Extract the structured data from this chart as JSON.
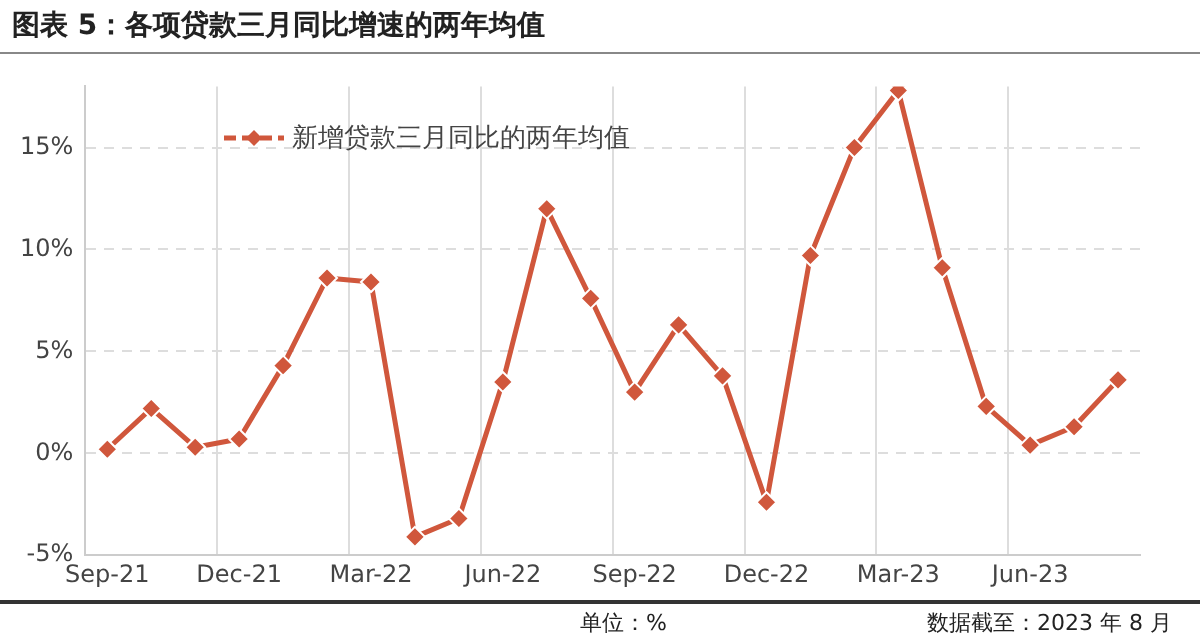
{
  "chart_data": {
    "type": "line",
    "title": "图表 5：各项贷款三月同比增速的两年均值",
    "categories": [
      "Sep-21",
      null,
      null,
      "Dec-21",
      null,
      null,
      "Mar-22",
      null,
      null,
      "Jun-22",
      null,
      null,
      "Sep-22",
      null,
      null,
      "Dec-22",
      null,
      null,
      "Mar-23",
      null,
      null,
      "Jun-23",
      null,
      null
    ],
    "series": [
      {
        "name": "新增贷款三月同比的两年均值",
        "color": "#d0573c",
        "values": [
          0.2,
          2.2,
          0.3,
          0.7,
          4.3,
          8.6,
          8.4,
          -4.1,
          -3.2,
          3.5,
          12.0,
          7.6,
          3.0,
          6.3,
          3.8,
          -2.4,
          9.7,
          15.0,
          17.8,
          9.1,
          2.3,
          0.4,
          1.3,
          3.6
        ]
      }
    ],
    "ylim": [
      -5,
      18
    ],
    "yticks": [
      {
        "value": -5,
        "label": "-5%"
      },
      {
        "value": 0,
        "label": "0%"
      },
      {
        "value": 5,
        "label": "5%"
      },
      {
        "value": 10,
        "label": "10%"
      },
      {
        "value": 15,
        "label": "15%"
      }
    ],
    "grid": true,
    "legend": "top left",
    "marker": "diamond",
    "line_style": "solid",
    "annotations": [
      "单位：%",
      "数据截至：2023 年 8 月"
    ]
  }
}
